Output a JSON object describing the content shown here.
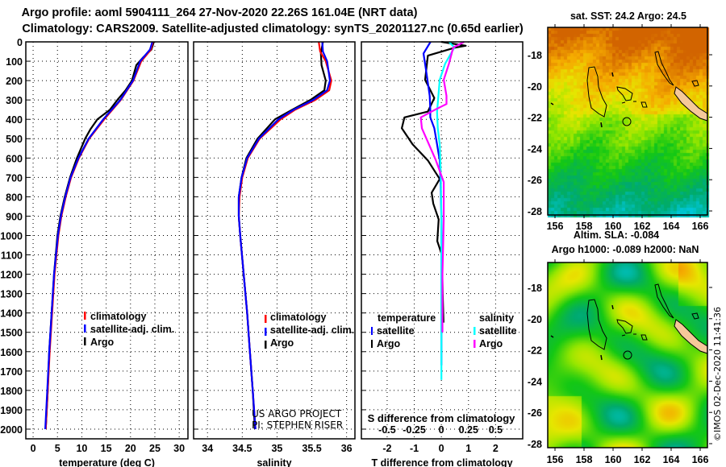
{
  "header": {
    "title_line1": "Argo profile: aoml 5904111_264 27-Nov-2020 22.26S 161.04E (NRT data)",
    "title_line2": "Climatology: CARS2009. Satellite-adjusted climatology: synTS_20201127.nc (0.65d earlier)"
  },
  "depth_axis": {
    "ticks": [
      0,
      100,
      200,
      300,
      400,
      500,
      600,
      700,
      800,
      900,
      1000,
      1100,
      1200,
      1300,
      1400,
      1500,
      1600,
      1700,
      1800,
      1900,
      2000
    ],
    "tick_labels": [
      "0",
      "100",
      "200",
      "300",
      "400",
      "500",
      "600",
      "700",
      "800",
      "900",
      "1000",
      "1100",
      "1200",
      "1300",
      "1400",
      "1500",
      "1600",
      "1700",
      "1800",
      "1900",
      "2000"
    ],
    "range": [
      0,
      2050
    ]
  },
  "chart_data": [
    {
      "type": "line",
      "id": "temperature",
      "xlabel": "temperature (deg C)",
      "ylabel": "depth",
      "xlim": [
        -1.5,
        31.8
      ],
      "xticks": [
        0,
        5,
        10,
        15,
        20,
        25,
        30
      ],
      "xtick_labels": [
        "0",
        "5",
        "10",
        "15",
        "20",
        "25",
        "30"
      ],
      "grid": true,
      "legend": [
        {
          "label": "climatology",
          "color": "#ff0000"
        },
        {
          "label": "satellite-adj. clim.",
          "color": "#0000ff"
        },
        {
          "label": "Argo",
          "color": "#000000"
        }
      ],
      "series": [
        {
          "name": "Argo",
          "color": "#000000",
          "points": [
            [
              24.8,
              0
            ],
            [
              24.3,
              40
            ],
            [
              22.6,
              80
            ],
            [
              21.2,
              120
            ],
            [
              20.3,
              200
            ],
            [
              19.0,
              250
            ],
            [
              17.3,
              300
            ],
            [
              15.8,
              350
            ],
            [
              13.2,
              400
            ],
            [
              11.8,
              450
            ],
            [
              10.7,
              500
            ],
            [
              9.0,
              600
            ],
            [
              7.6,
              700
            ],
            [
              6.5,
              800
            ],
            [
              5.6,
              900
            ],
            [
              5.0,
              1000
            ],
            [
              4.3,
              1200
            ],
            [
              3.8,
              1400
            ],
            [
              3.3,
              1600
            ],
            [
              3.0,
              1800
            ],
            [
              2.6,
              2000
            ]
          ]
        },
        {
          "name": "climatology",
          "color": "#ff0000",
          "points": [
            [
              24.6,
              0
            ],
            [
              24.2,
              40
            ],
            [
              22.2,
              100
            ],
            [
              20.6,
              200
            ],
            [
              18.0,
              300
            ],
            [
              14.6,
              400
            ],
            [
              11.5,
              500
            ],
            [
              9.4,
              600
            ],
            [
              7.8,
              700
            ],
            [
              6.7,
              800
            ],
            [
              5.8,
              900
            ],
            [
              5.2,
              1000
            ],
            [
              4.4,
              1200
            ],
            [
              3.9,
              1400
            ],
            [
              3.4,
              1600
            ],
            [
              3.0,
              1800
            ],
            [
              2.6,
              2000
            ]
          ]
        },
        {
          "name": "satellite-adj. clim.",
          "color": "#0000ff",
          "points": [
            [
              24.5,
              0
            ],
            [
              24.0,
              40
            ],
            [
              22.0,
              100
            ],
            [
              20.5,
              200
            ],
            [
              17.9,
              300
            ],
            [
              14.4,
              400
            ],
            [
              11.4,
              500
            ],
            [
              9.3,
              600
            ],
            [
              7.7,
              700
            ],
            [
              6.6,
              800
            ],
            [
              5.7,
              900
            ],
            [
              5.1,
              1000
            ],
            [
              4.3,
              1200
            ],
            [
              3.8,
              1400
            ],
            [
              3.3,
              1600
            ],
            [
              2.9,
              1800
            ],
            [
              2.5,
              2000
            ]
          ]
        }
      ]
    },
    {
      "type": "line",
      "id": "salinity",
      "xlabel": "salinity",
      "ylabel": "depth",
      "xlim": [
        33.8,
        36.12
      ],
      "xticks": [
        34,
        34.5,
        35,
        35.5,
        36
      ],
      "xtick_labels": [
        "34",
        "34.5",
        "35",
        "35.5",
        "36"
      ],
      "grid": true,
      "legend": [
        {
          "label": "climatology",
          "color": "#ff0000"
        },
        {
          "label": "satellite-adj. clim.",
          "color": "#0000ff"
        },
        {
          "label": "Argo",
          "color": "#000000"
        }
      ],
      "annotations": [
        "US ARGO PROJECT",
        "PI: STEPHEN RISER"
      ],
      "series": [
        {
          "name": "Argo",
          "color": "#000000",
          "points": [
            [
              35.66,
              0
            ],
            [
              35.63,
              60
            ],
            [
              35.64,
              120
            ],
            [
              35.7,
              200
            ],
            [
              35.68,
              250
            ],
            [
              35.48,
              300
            ],
            [
              35.22,
              350
            ],
            [
              34.97,
              400
            ],
            [
              34.72,
              500
            ],
            [
              34.56,
              600
            ],
            [
              34.49,
              700
            ],
            [
              34.45,
              800
            ],
            [
              34.45,
              900
            ],
            [
              34.47,
              1000
            ],
            [
              34.52,
              1200
            ],
            [
              34.57,
              1400
            ],
            [
              34.61,
              1600
            ],
            [
              34.65,
              1800
            ],
            [
              34.68,
              2000
            ]
          ]
        },
        {
          "name": "climatology",
          "color": "#ff0000",
          "points": [
            [
              35.6,
              0
            ],
            [
              35.62,
              50
            ],
            [
              35.7,
              100
            ],
            [
              35.78,
              200
            ],
            [
              35.75,
              250
            ],
            [
              35.55,
              300
            ],
            [
              35.26,
              350
            ],
            [
              35.05,
              400
            ],
            [
              34.75,
              500
            ],
            [
              34.58,
              600
            ],
            [
              34.5,
              700
            ],
            [
              34.46,
              800
            ],
            [
              34.45,
              900
            ],
            [
              34.47,
              1000
            ],
            [
              34.52,
              1200
            ],
            [
              34.57,
              1400
            ],
            [
              34.61,
              1600
            ],
            [
              34.65,
              1800
            ],
            [
              34.69,
              2000
            ]
          ]
        },
        {
          "name": "satellite-adj. clim.",
          "color": "#0000ff",
          "points": [
            [
              35.65,
              0
            ],
            [
              35.66,
              50
            ],
            [
              35.72,
              100
            ],
            [
              35.76,
              200
            ],
            [
              35.72,
              250
            ],
            [
              35.52,
              300
            ],
            [
              35.24,
              350
            ],
            [
              35.02,
              400
            ],
            [
              34.74,
              500
            ],
            [
              34.57,
              600
            ],
            [
              34.49,
              700
            ],
            [
              34.45,
              800
            ],
            [
              34.45,
              900
            ],
            [
              34.47,
              1000
            ],
            [
              34.52,
              1200
            ],
            [
              34.57,
              1400
            ],
            [
              34.61,
              1600
            ],
            [
              34.65,
              1800
            ],
            [
              34.69,
              2000
            ]
          ]
        }
      ]
    },
    {
      "type": "line",
      "id": "difference",
      "xlabel": "T difference from climatology",
      "secondary_xlabel": "S difference from climatology",
      "ylabel": "depth",
      "xlim": [
        -2.95,
        3.0
      ],
      "xticks": [
        -2,
        -1,
        0,
        1,
        2
      ],
      "xtick_labels": [
        "-2",
        "-1",
        "0",
        "1",
        "2"
      ],
      "secondary_xticks": [
        -0.5,
        -0.25,
        0,
        0.25,
        0.5
      ],
      "secondary_xtick_labels": [
        "-0.5",
        "-0.25",
        "0",
        "0.25",
        "0.5"
      ],
      "grid": true,
      "legend_headers": [
        "temperature",
        "salinity"
      ],
      "legend": [
        {
          "group": "temperature",
          "label": "satellite",
          "color": "#0000ff"
        },
        {
          "group": "temperature",
          "label": "Argo",
          "color": "#000000"
        },
        {
          "group": "salinity",
          "label": "satellite",
          "color": "#00ffff"
        },
        {
          "group": "salinity",
          "label": "Argo",
          "color": "#ff00ff"
        }
      ],
      "series": [
        {
          "name": "T Argo",
          "axis": "T",
          "color": "#000000",
          "points": [
            [
              0.0,
              0
            ],
            [
              0.9,
              20
            ],
            [
              0.5,
              30
            ],
            [
              -0.5,
              71
            ],
            [
              -0.6,
              196
            ],
            [
              -0.26,
              290
            ],
            [
              -0.5,
              360
            ],
            [
              -1.36,
              390
            ],
            [
              -1.46,
              446
            ],
            [
              -1.06,
              529
            ],
            [
              -0.5,
              612
            ],
            [
              -0.06,
              708
            ],
            [
              -0.36,
              779
            ],
            [
              -0.3,
              835
            ],
            [
              -0.1,
              917
            ],
            [
              -0.15,
              1029
            ],
            [
              0.02,
              1100
            ],
            [
              0.05,
              1300
            ],
            [
              0.08,
              1450
            ]
          ]
        },
        {
          "name": "T satellite",
          "axis": "T",
          "color": "#0000ff",
          "points": [
            [
              -0.4,
              0
            ],
            [
              -0.66,
              60
            ],
            [
              -0.56,
              150
            ],
            [
              -0.43,
              279
            ],
            [
              -0.41,
              348
            ],
            [
              -0.41,
              390
            ],
            [
              -0.26,
              446
            ],
            [
              -0.16,
              529
            ],
            [
              -0.06,
              612
            ],
            [
              -0.03,
              724
            ],
            [
              0.0,
              917
            ],
            [
              0.0,
              1200
            ],
            [
              0.0,
              1670
            ]
          ]
        },
        {
          "name": "S satellite",
          "axis": "S",
          "color": "#00ffff",
          "points": [
            [
              0.07,
              0
            ],
            [
              0.12,
              29
            ],
            [
              0.035,
              112
            ],
            [
              -0.015,
              196
            ],
            [
              -0.04,
              362
            ],
            [
              -0.033,
              446
            ],
            [
              -0.015,
              529
            ],
            [
              -0.005,
              700
            ],
            [
              0.0,
              917
            ],
            [
              0.0,
              1300
            ],
            [
              0.0,
              1745
            ]
          ]
        },
        {
          "name": "S Argo",
          "axis": "S",
          "color": "#ff00ff",
          "points": [
            [
              0.21,
              0
            ],
            [
              0.11,
              29
            ],
            [
              0.07,
              112
            ],
            [
              0.022,
              196
            ],
            [
              0.047,
              279
            ],
            [
              0.047,
              321
            ],
            [
              -0.05,
              348
            ],
            [
              -0.19,
              390
            ],
            [
              -0.18,
              446
            ],
            [
              -0.115,
              529
            ],
            [
              -0.05,
              612
            ],
            [
              0.022,
              724
            ],
            [
              0.022,
              917
            ],
            [
              0.01,
              1196
            ],
            [
              0.01,
              1500
            ]
          ]
        }
      ]
    }
  ],
  "maps": [
    {
      "id": "sst-map",
      "title": "sat. SST: 24.2 Argo: 24.5",
      "lon_labels": [
        "156",
        "158",
        "160",
        "162",
        "164",
        "166"
      ],
      "lat_labels": [
        "-18",
        "-20",
        "-22",
        "-24",
        "-26",
        "-28"
      ]
    },
    {
      "id": "sla-map",
      "title_line1": "Altim. SLA: -0.084",
      "title_line2": "Argo h1000: -0.089 h2000: NaN",
      "lon_labels": [
        "156",
        "158",
        "160",
        "162",
        "164",
        "166"
      ],
      "lat_labels": [
        "-18",
        "-20",
        "-22",
        "-24",
        "-26",
        "-28"
      ]
    }
  ],
  "watermark": "©IMOS 02-Dec-2020 11:41:36"
}
